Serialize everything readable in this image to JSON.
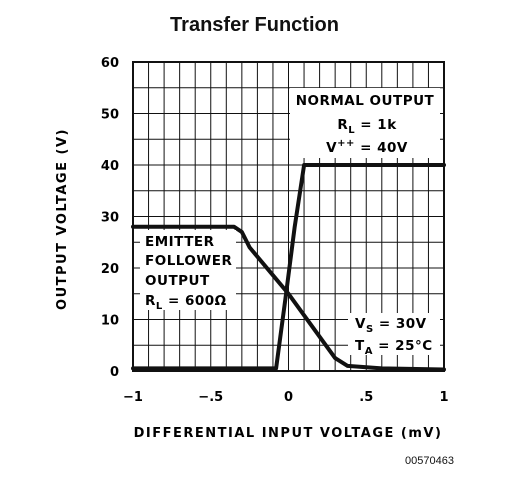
{
  "chart_data": {
    "type": "line",
    "title": "Transfer Function",
    "xlabel": "DIFFERENTIAL INPUT VOLTAGE (mV)",
    "ylabel": "OUTPUT VOLTAGE (V)",
    "xlim": [
      -1,
      1
    ],
    "ylim": [
      0,
      60
    ],
    "grid": true,
    "x_ticks": [
      -1,
      -0.5,
      0,
      0.5,
      1
    ],
    "x_tick_labels": [
      "−1",
      "−.5",
      "0",
      ".5",
      "1"
    ],
    "y_ticks": [
      0,
      10,
      20,
      30,
      40,
      50,
      60
    ],
    "y_tick_labels": [
      "0",
      "10",
      "20",
      "30",
      "40",
      "50",
      "60"
    ],
    "series": [
      {
        "x": [
          -1,
          -0.08,
          -0.02,
          0.04,
          0.1,
          1
        ],
        "y": [
          0.5,
          0.5,
          14,
          28,
          40,
          40
        ]
      },
      {
        "x": [
          -1,
          -0.35,
          -0.3,
          -0.25,
          0,
          0.3,
          0.38,
          0.6,
          1
        ],
        "y": [
          28,
          28,
          27,
          24,
          15,
          2.5,
          1,
          0.5,
          0.3
        ]
      }
    ],
    "annotations": {
      "normal": [
        "NORMAL OUTPUT",
        "R",
        "L",
        " = 1k",
        "V",
        "++",
        " = 40V"
      ],
      "emitter": [
        "EMITTER",
        "FOLLOWER",
        "OUTPUT",
        "R",
        "L",
        " = 600Ω"
      ],
      "conditions": [
        "V",
        "S",
        " = 30V",
        "T",
        "A",
        " = 25°C"
      ]
    }
  },
  "figure_id": "00570463"
}
